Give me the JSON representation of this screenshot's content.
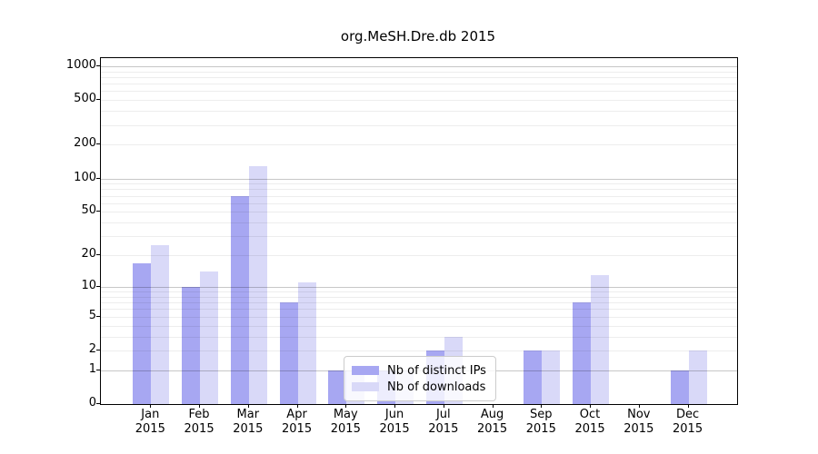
{
  "chart_data": {
    "type": "bar",
    "title": "org.MeSH.Dre.db 2015",
    "categories": [
      "Jan 2015",
      "Feb 2015",
      "Mar 2015",
      "Apr 2015",
      "May 2015",
      "Jun 2015",
      "Jul 2015",
      "Aug 2015",
      "Sep 2015",
      "Oct 2015",
      "Nov 2015",
      "Dec 2015"
    ],
    "series": [
      {
        "name": "Nb of distinct IPs",
        "color": "#a7a7f2",
        "values": [
          17,
          10,
          70,
          7,
          1,
          1,
          2,
          0,
          2,
          7,
          0,
          1
        ]
      },
      {
        "name": "Nb of downloads",
        "color": "#d9d9f8",
        "values": [
          25,
          14,
          130,
          11,
          1,
          1,
          3,
          0,
          2,
          13,
          0,
          2
        ]
      }
    ],
    "yticks": [
      0,
      1,
      2,
      5,
      10,
      20,
      50,
      100,
      200,
      500,
      1000
    ],
    "scale": "log10(1+x)",
    "ylim": [
      0,
      1180
    ],
    "grid": true,
    "legend_position": "lower center"
  }
}
